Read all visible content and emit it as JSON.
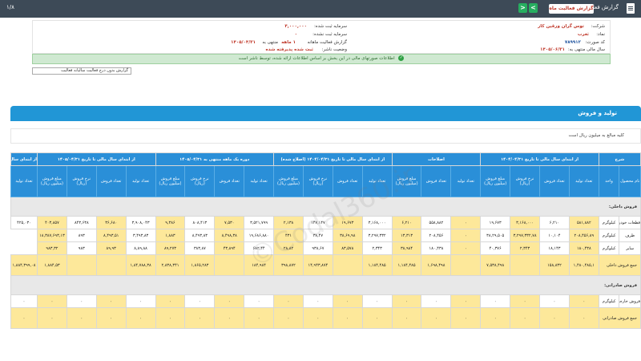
{
  "topbar": {
    "title": "گزارش فعالیت ماهانه",
    "type_badge": "گزارش فعالیت ماه",
    "page_count": "۱/۸",
    "next_label": "<",
    "prev_label": ">"
  },
  "info": {
    "company_label": "شرکت:",
    "company_value": "توس گران ورقین کار",
    "symbol_label": "نماد:",
    "symbol_value": "ثغرب",
    "code_label": "کد صورت:",
    "code_value": "۷۸۹۹۱۲",
    "period_label": "سال مالی منتهی به:",
    "period_value": "۱۴۰۵/۰۶/۳۱",
    "capital_label": "سرمایه ثبت شده:",
    "capital_value": "۴,۰۰۰,۰۰۰",
    "unreg_capital_label": "سرمایه ثبت نشده:",
    "unreg_capital_value": "۰",
    "report_label": "گزارش فعالیت ماهانه",
    "month_label": "۱ ماهه",
    "end_label": "منتهی به",
    "end_value": "۱۴۰۵/۰۴/۳۱",
    "status_label": "وضعیت ناشر:",
    "status_value": "ثبت شده پذیرفته شده"
  },
  "notice": "اطلاعات صورتهای مالی در این بخش بر اساس اطلاعات ارائه شده، توسط ناشر است",
  "filter": "گزارش بدون درج فعالیت سالیانه فعالیت",
  "section_title": "تولید و فروش",
  "description": "کلیه مبالغ به میلیون ریال است",
  "groups": [
    "از ابتدای سال مالی تا تاریخ ۱۴۰۴/۰۴/۳۱",
    "اصلاحات",
    "از ابتدای سال مالی تا تاریخ ۱۴۰۴/۰۴/۳۱ (اصلاح شده)",
    "دوره یک ماهه منتهی به ۱۴۰۵/۰۴/۳۱",
    "از ابتدای سال مالی تا تاریخ ۱۴۰۵/۰۴/۳۱",
    "از ابتدای سال مالی تا"
  ],
  "headers": [
    "نام محصول",
    "واحد",
    "تعداد تولید",
    "تعداد فروش",
    "نرخ فروش (ریال)",
    "مبلغ فروش (میلیون ریال)",
    "تعداد تولید",
    "تعداد فروش",
    "مبلغ فروش (میلیون ریال)",
    "تعداد تولید",
    "تعداد فروش",
    "نرخ فروش (ریال)",
    "مبلغ فروش (میلیون ریال)",
    "تعداد تولید",
    "تعداد فروش",
    "نرخ فروش (ریال)",
    "مبلغ فروش (میلیون ریال)",
    "تعداد تولید",
    "تعداد فروش",
    "نرخ فروش (ریال)",
    "مبلغ فروش (میلیون ریال)",
    "تعداد تولید"
  ],
  "category_domestic": "فروش داخلی:",
  "category_export": "فروش صادراتی:",
  "rows": [
    [
      "قطعات خودرو",
      "کیلوگرم",
      "۵۸۱,۸۸۲",
      "۶,۲۱۰",
      "۳,۱۶۸,۰۰۰",
      "۱۹,۶۷۳",
      "۰",
      "۵۵۸,۸۸۲",
      "۶,۲۱۰",
      "۳,۱۶۸,۰۰۰",
      "۱۹,۶۷۳",
      "۱۴۷,۱۴۷",
      "۲,۱۳۸",
      "۳,۵۲۱,۷۹۹",
      "۷,۵۳۰",
      "۸۰۸,۴۱۳",
      "۹,۳۸۶",
      "۳,۹۰۸,۰۴۳",
      "۳۶,۶۸۰",
      "۸۴۳,۶۳۸",
      "۴۰۳,۸۵۷",
      "۴۲۵,۰۳۰"
    ],
    [
      "ظرف",
      "کیلوگرم",
      "۲۰۸,۴۵۶,۸۹",
      "۱۰,۱۰۴",
      "۳,۲۹۷,۳۳۲,۷۸",
      "۳۸,۲۹,۵۰۵",
      "۰",
      "۲۰۸,۴۵۶",
      "۱۳,۳۱۳",
      "۳,۲۹۷,۳۳۲",
      "۳۸,۶۹,۹۸",
      "۳۸,۴۷",
      "۴۳۱",
      "۱۹,۶۸۶,۸۸۰",
      "۸,۴۹۸,۳۸",
      "۸,۴۹۳,۸۳",
      "۱,۸۸۳",
      "۳,۴۹۳,۸۳",
      "۸,۴۹۳,۵۱",
      "۸۹۳",
      "۱۸,۳۸۷,۶۹۳,۱۳"
    ],
    [
      "سایر",
      "کیلوگرم",
      "۱۸۰,۴۳۸",
      "۱۸,۱۴۳",
      "۲,۳۴۳",
      "۴۰,۳۷۶",
      "۰",
      "۱۸۰,۴۳۸",
      "۳۸,۹۸۴",
      "۲,۳۴۳",
      "۸۳,۵۷۸",
      "۹۳۸,۶۷",
      "۲۸,۸۲",
      "۶۸۲,۴۴",
      "۴۳,۸۹۴",
      "۳۸۳,۸۷",
      "۸۹,۲۷۳",
      "۸,۸۹,۸۸",
      "۸۹,۹۳",
      "۹۸۳",
      "۹۸۳,۳۲"
    ]
  ],
  "total_domestic": {
    "label": "جمع فروش داخلی",
    "values": [
      "۱,۴۸۰,۴۸۵,۱",
      "۱۵۸,۸۳۲",
      "",
      "۷,۵۳۸,۴۹۸",
      "",
      "۱,۶۹۸,۴۹۸",
      "۱,۱۸۴,۴۸۵",
      "۱,۱۸۴,۴۸۵",
      "",
      "۱۴,۹۴۳,۸۷۴",
      "۳۹۸,۸۷۲",
      "۱۸۴,۹۸۴",
      "",
      "۱,۸۶۵,۲۸۳",
      "۲,۸۳۸,۳۴۱",
      "۱,۸۴,۷۸۸,۳۸",
      "",
      "",
      "۱,۸۸۴,۵۳",
      "۱,۸۸۴,۳۹۹,۰۸"
    ]
  },
  "export_row": [
    "فروش خارجی",
    "کیلوگرم",
    "۰",
    "۰",
    "۰",
    "۰",
    "۰",
    "۰",
    "۰",
    "۰",
    "۰",
    "۰",
    "۰",
    "۰",
    "۰",
    "۰",
    "۰",
    "۰",
    "۰",
    "۰",
    "۰",
    "۰"
  ],
  "total_export": {
    "label": "جمع فروش صادراتی",
    "values": [
      "۰",
      "۰",
      "۰",
      "۰",
      "۰",
      "۰",
      "۰",
      "۰",
      "۰",
      "۰",
      "۰",
      "۰",
      "۰",
      "۰",
      "۰",
      "۰",
      "۰",
      "۰",
      "۰",
      "۰"
    ]
  },
  "watermark": "©Codal360.ir",
  "colors": {
    "header_bar": "#3d4a57",
    "section": "#2196d6",
    "highlight": "#fde89a",
    "notice": "#cfe9d1"
  }
}
